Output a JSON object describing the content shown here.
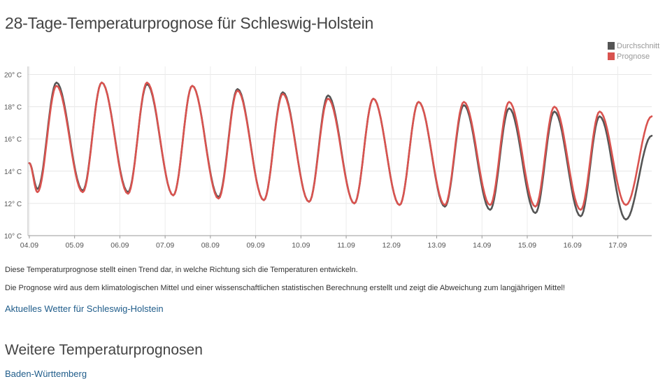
{
  "page": {
    "title": "28-Tage-Temperaturprognose für Schleswig-Holstein",
    "description_1": "Diese Temperaturprognose stellt einen Trend dar, in welche Richtung sich die Temperaturen entwickeln.",
    "description_2": "Die Prognose wird aus dem klimatologischen Mittel und einer wissenschaftlichen statistischen Berechnung erstellt und zeigt die Abweichung zum langjährigen Mittel!",
    "current_weather_link": "Aktuelles Wetter für Schleswig-Holstein",
    "more_title": "Weitere Temperaturprognosen",
    "region_links": [
      "Baden-Württemberg"
    ]
  },
  "chart_data": {
    "type": "line",
    "title": "",
    "xlabel": "",
    "ylabel": "",
    "ylim": [
      10,
      20.5
    ],
    "xlim": [
      -0.03,
      13.75
    ],
    "grid": true,
    "y_ticks": [
      10,
      12,
      14,
      16,
      18,
      20
    ],
    "y_tick_labels": [
      "10° C",
      "12° C",
      "14° C",
      "16° C",
      "18° C",
      "20° C"
    ],
    "x_tick_labels": [
      "04.09",
      "05.09",
      "06.09",
      "07.09",
      "08.09",
      "09.09",
      "10.09",
      "11.09",
      "12.09",
      "13.09",
      "14.09",
      "15.09",
      "16.09",
      "17.09"
    ],
    "legend_position": "top-right",
    "series": [
      {
        "name": "Durchschnitt",
        "color": "#555555",
        "min_days": [
          0.18,
          1.18,
          2.18,
          3.18,
          4.18,
          5.18,
          6.18,
          7.18,
          8.18,
          9.18,
          10.18,
          11.18,
          12.18,
          13.18
        ],
        "min_values": [
          12.9,
          12.8,
          12.7,
          12.5,
          12.4,
          12.2,
          12.1,
          12.0,
          11.9,
          11.8,
          11.6,
          11.4,
          11.2,
          11.0
        ],
        "max_days": [
          0.6,
          1.6,
          2.6,
          3.6,
          4.6,
          5.6,
          6.6,
          7.6,
          8.6,
          9.6,
          10.6,
          11.6,
          12.6
        ],
        "max_values": [
          19.5,
          19.5,
          19.4,
          19.3,
          19.1,
          18.9,
          18.7,
          18.5,
          18.3,
          18.1,
          17.9,
          17.7,
          17.4
        ],
        "start": [
          0,
          14.5
        ],
        "end": [
          13.75,
          16.2
        ]
      },
      {
        "name": "Prognose",
        "color": "#d9534f",
        "min_days": [
          0.18,
          1.18,
          2.18,
          3.18,
          4.18,
          5.18,
          6.18,
          7.18,
          8.18,
          9.18,
          10.18,
          11.18,
          12.18,
          13.18
        ],
        "min_values": [
          12.7,
          12.7,
          12.6,
          12.5,
          12.3,
          12.2,
          12.1,
          12.0,
          11.9,
          11.9,
          11.9,
          11.8,
          11.6,
          11.9
        ],
        "max_days": [
          0.6,
          1.6,
          2.6,
          3.6,
          4.6,
          5.6,
          6.6,
          7.6,
          8.6,
          9.6,
          10.6,
          11.6,
          12.6
        ],
        "max_values": [
          19.3,
          19.5,
          19.5,
          19.3,
          19.0,
          18.8,
          18.5,
          18.5,
          18.3,
          18.3,
          18.3,
          18.0,
          17.7
        ],
        "start": [
          0,
          14.5
        ],
        "end": [
          13.75,
          17.4
        ]
      }
    ]
  }
}
